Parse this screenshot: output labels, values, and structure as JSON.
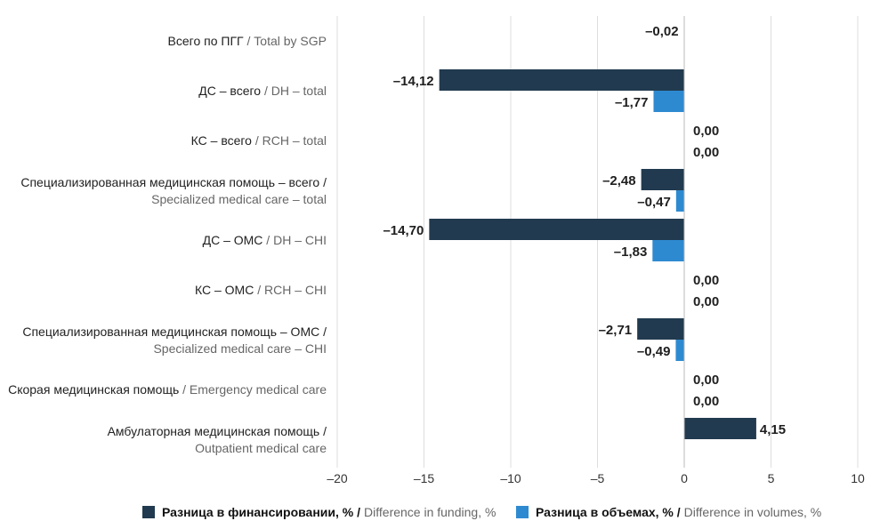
{
  "chart_data": {
    "type": "bar",
    "orientation": "horizontal",
    "categories": [
      {
        "ru": "Всего по ПГГ",
        "en": "Total by SGP"
      },
      {
        "ru": "ДС – всего",
        "en": "DH – total"
      },
      {
        "ru": "КС – всего",
        "en": "RCH – total"
      },
      {
        "ru": "Специализированная медицинская помощь – всего /",
        "en": "Specialized medical care – total"
      },
      {
        "ru": "ДС – ОМС",
        "en": "DH – CHI"
      },
      {
        "ru": "КС – ОМС",
        "en": "RCH – CHI"
      },
      {
        "ru": "Специализированная медицинская помощь – ОМС /",
        "en": "Specialized medical care – CHI"
      },
      {
        "ru": "Скорая медицинская помощь",
        "en": "Emergency medical care"
      },
      {
        "ru": "Амбулаторная медицинская помощь /",
        "en": "Outpatient medical care"
      }
    ],
    "series": [
      {
        "name": "Разница в финансировании, % / Difference in funding, %",
        "name_ru": "Разница в финансировании, %",
        "name_en": "Difference in funding, %",
        "color": "#213a4f",
        "values": [
          -0.02,
          -14.12,
          0.0,
          -2.48,
          -14.7,
          0.0,
          -2.71,
          0.0,
          4.15
        ],
        "labels": [
          "–0,02",
          "–14,12",
          "0,00",
          "–2,48",
          "–14,70",
          "0,00",
          "–2,71",
          "0,00",
          "4,15"
        ]
      },
      {
        "name": "Разница в объемах, % / Difference in volumes, %",
        "name_ru": "Разница в объемах, %",
        "name_en": "Difference in volumes, %",
        "color": "#2e8ad0",
        "values": [
          null,
          -1.77,
          0.0,
          -0.47,
          -1.83,
          0.0,
          -0.49,
          0.0,
          null
        ],
        "labels": [
          null,
          "–1,77",
          "0,00",
          "–0,47",
          "–1,83",
          "0,00",
          "–0,49",
          "0,00",
          null
        ]
      }
    ],
    "xlim": [
      -20,
      10
    ],
    "xticks": [
      -20,
      -15,
      -10,
      -5,
      0,
      5,
      10
    ],
    "xtick_labels": [
      "–20",
      "–15",
      "–10",
      "–5",
      "0",
      "5",
      "10"
    ],
    "grid": "vertical",
    "legend_position": "bottom",
    "title": "",
    "xlabel": "",
    "ylabel": ""
  }
}
